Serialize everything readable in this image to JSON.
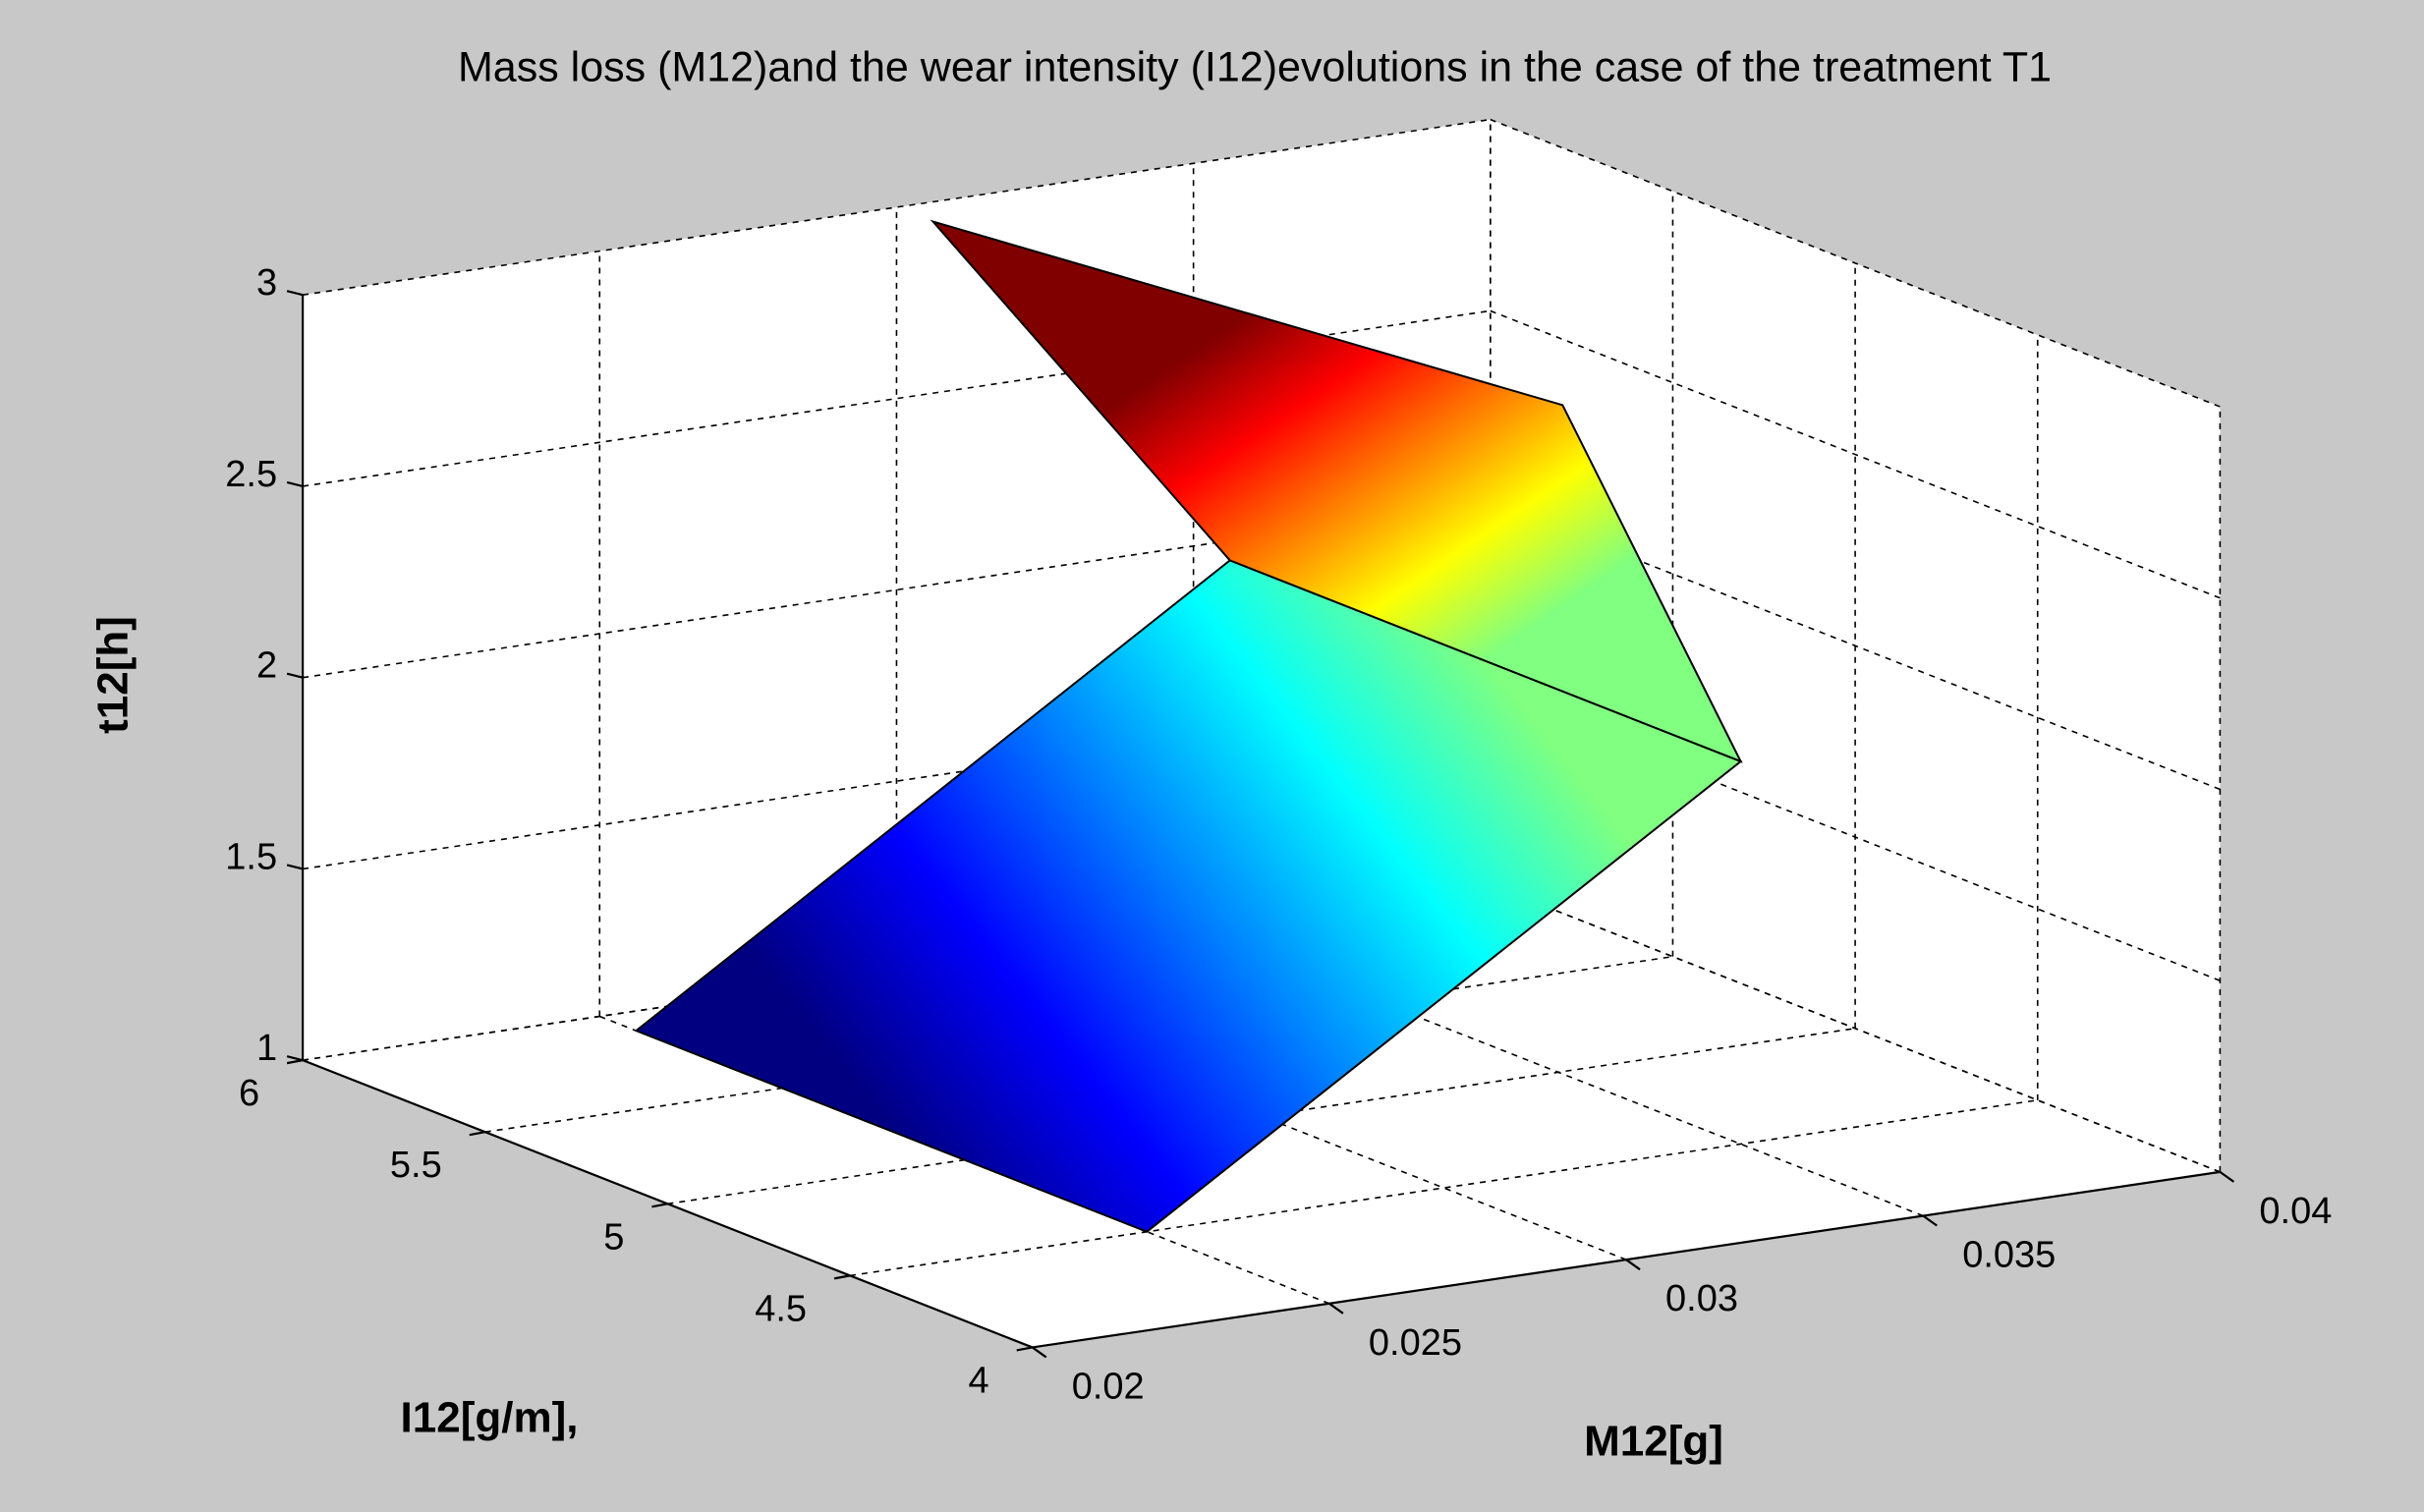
{
  "chart_data": {
    "type": "surface",
    "title": "Mass loss (M12)and the wear intensity (I12)evolutions in the case of the treatment T1",
    "xlabel": "M12[g]",
    "ylabel": "I12[g/m],",
    "zlabel": "t12[h]",
    "xlim": [
      0.02,
      0.04
    ],
    "xticks": [
      0.02,
      0.025,
      0.03,
      0.035,
      0.04
    ],
    "ylim": [
      4,
      6
    ],
    "yticks": [
      4,
      4.5,
      5,
      5.5,
      6
    ],
    "zlim": [
      1,
      3
    ],
    "zticks": [
      1,
      1.5,
      2,
      2.5,
      3
    ],
    "grid": true,
    "colormap": "jet",
    "x": [
      [
        0.025,
        0.025
      ],
      [
        0.035,
        0.035
      ],
      [
        0.032,
        0.03
      ]
    ],
    "y": [
      [
        4.5,
        5.9
      ],
      [
        4.5,
        5.9
      ],
      [
        4.5,
        5.9
      ]
    ],
    "z": [
      [
        1,
        1
      ],
      [
        2,
        2
      ],
      [
        3,
        3
      ]
    ]
  }
}
